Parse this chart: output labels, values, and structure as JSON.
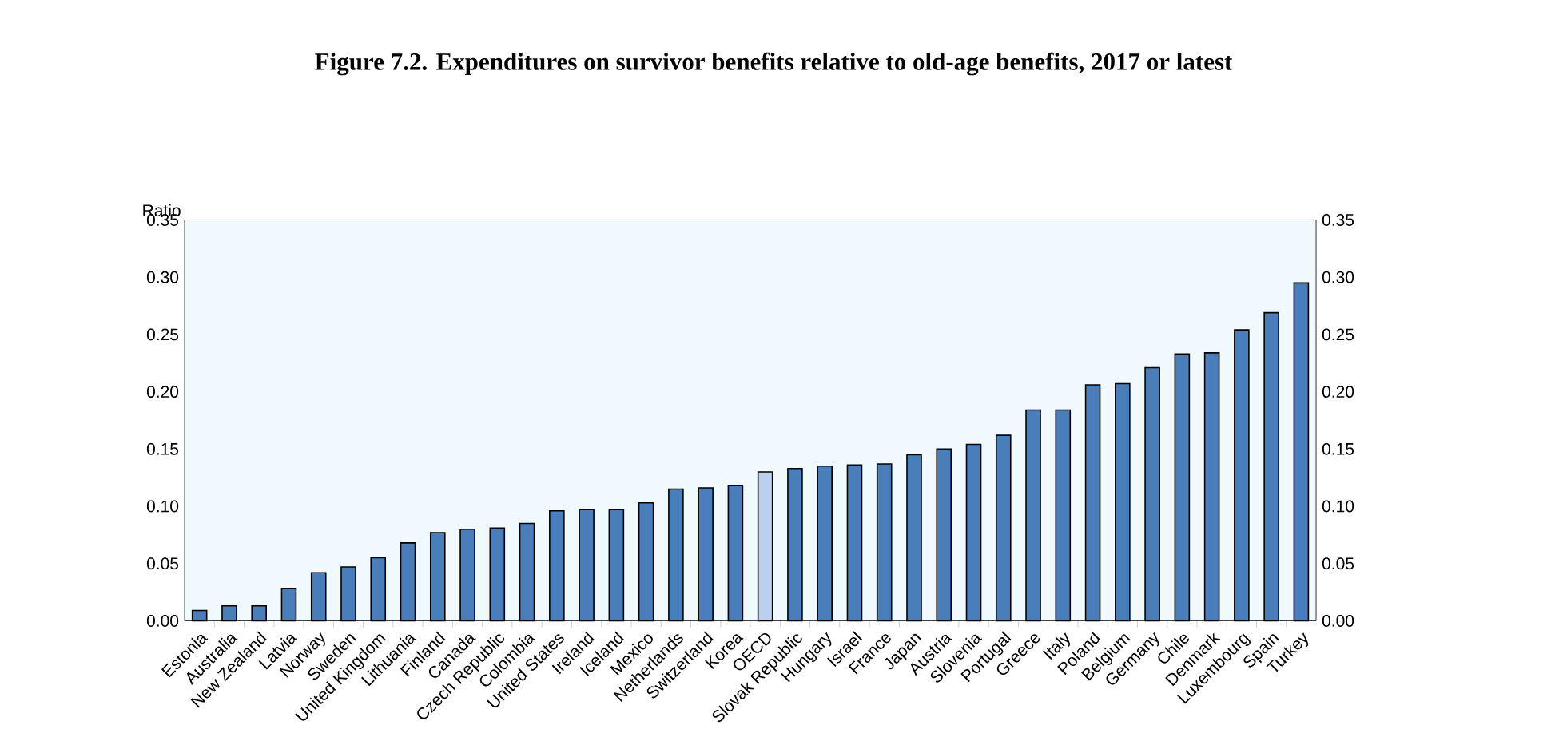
{
  "chart_data": {
    "type": "bar",
    "title": "Figure 7.2. Expenditures on survivor benefits relative to old-age benefits, 2017 or latest",
    "ylabel": "Ratio",
    "categories": [
      "Estonia",
      "Australia",
      "New Zealand",
      "Latvia",
      "Norway",
      "Sweden",
      "United Kingdom",
      "Lithuania",
      "Finland",
      "Canada",
      "Czech Republic",
      "Colombia",
      "United States",
      "Ireland",
      "Iceland",
      "Mexico",
      "Netherlands",
      "Switzerland",
      "Korea",
      "OECD",
      "Slovak Republic",
      "Hungary",
      "Israel",
      "France",
      "Japan",
      "Austria",
      "Slovenia",
      "Portugal",
      "Greece",
      "Italy",
      "Poland",
      "Belgium",
      "Germany",
      "Chile",
      "Denmark",
      "Luxembourg",
      "Spain",
      "Turkey"
    ],
    "values": [
      0.009,
      0.013,
      0.013,
      0.028,
      0.042,
      0.047,
      0.055,
      0.068,
      0.077,
      0.08,
      0.081,
      0.085,
      0.096,
      0.097,
      0.097,
      0.103,
      0.115,
      0.116,
      0.118,
      0.13,
      0.133,
      0.135,
      0.136,
      0.137,
      0.145,
      0.15,
      0.154,
      0.162,
      0.184,
      0.184,
      0.206,
      0.207,
      0.221,
      0.233,
      0.234,
      0.254,
      0.269,
      0.295
    ],
    "colors": [
      "#4a7ebb",
      "#4a7ebb",
      "#4a7ebb",
      "#4a7ebb",
      "#4a7ebb",
      "#4a7ebb",
      "#4a7ebb",
      "#4a7ebb",
      "#4a7ebb",
      "#4a7ebb",
      "#4a7ebb",
      "#4a7ebb",
      "#4a7ebb",
      "#4a7ebb",
      "#4a7ebb",
      "#4a7ebb",
      "#4a7ebb",
      "#4a7ebb",
      "#4a7ebb",
      "#b9d1ee",
      "#4a7ebb",
      "#4a7ebb",
      "#4a7ebb",
      "#4a7ebb",
      "#4a7ebb",
      "#4a7ebb",
      "#4a7ebb",
      "#4a7ebb",
      "#4a7ebb",
      "#4a7ebb",
      "#4a7ebb",
      "#4a7ebb",
      "#4a7ebb",
      "#4a7ebb",
      "#4a7ebb",
      "#4a7ebb",
      "#4a7ebb",
      "#4a7ebb"
    ],
    "ylim": [
      0,
      0.35
    ],
    "yticks": [
      {
        "value": 0,
        "label": "0.00"
      },
      {
        "value": 0.05,
        "label": "0.05"
      },
      {
        "value": 0.1,
        "label": "0.10"
      },
      {
        "value": 0.15,
        "label": "0.15"
      },
      {
        "value": 0.2,
        "label": "0.20"
      },
      {
        "value": 0.25,
        "label": "0.25"
      },
      {
        "value": 0.3,
        "label": "0.30"
      },
      {
        "value": 0.35,
        "label": "0.35"
      }
    ],
    "y2lim": [
      0,
      0.35
    ],
    "y2ticks": [
      {
        "value": 0,
        "label": "0.00"
      },
      {
        "value": 0.05,
        "label": "0.05"
      },
      {
        "value": 0.1,
        "label": "0.10"
      },
      {
        "value": 0.15,
        "label": "0.15"
      },
      {
        "value": 0.2,
        "label": "0.20"
      },
      {
        "value": 0.25,
        "label": "0.25"
      },
      {
        "value": 0.3,
        "label": "0.30"
      },
      {
        "value": 0.35,
        "label": "0.35"
      }
    ]
  }
}
